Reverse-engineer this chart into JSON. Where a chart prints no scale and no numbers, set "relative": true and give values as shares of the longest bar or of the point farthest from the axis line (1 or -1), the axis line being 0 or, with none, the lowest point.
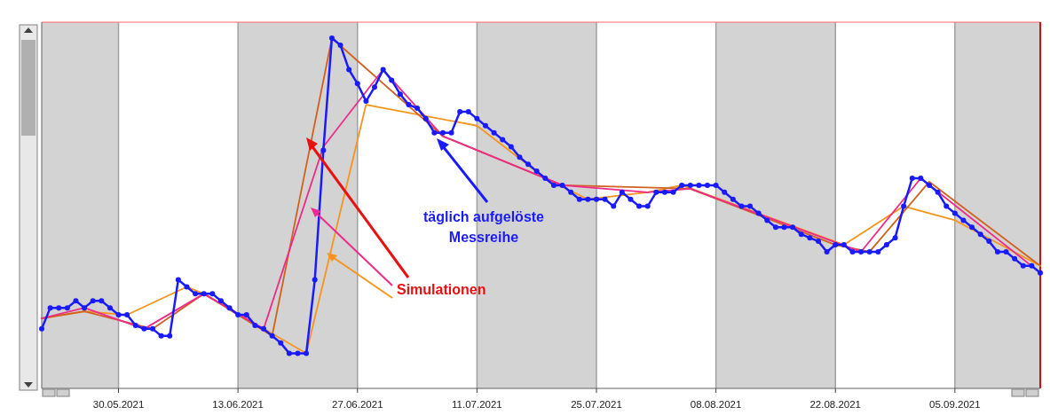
{
  "chart_data": {
    "type": "line",
    "relative": true,
    "marker": "circle",
    "grid": "x",
    "xlim": [
      "2021-05-21",
      "2021-09-15"
    ],
    "xticks": [
      {
        "value": "2021-05-30",
        "label": "30.05.2021"
      },
      {
        "value": "2021-06-13",
        "label": "13.06.2021"
      },
      {
        "value": "2021-06-27",
        "label": "27.06.2021"
      },
      {
        "value": "2021-07-11",
        "label": "11.07.2021"
      },
      {
        "value": "2021-07-25",
        "label": "25.07.2021"
      },
      {
        "value": "2021-08-08",
        "label": "08.08.2021"
      },
      {
        "value": "2021-08-22",
        "label": "22.08.2021"
      },
      {
        "value": "2021-09-05",
        "label": "05.09.2021"
      }
    ],
    "bands": [
      {
        "axis": "x",
        "from": "2021-05-21",
        "to": "2021-05-30",
        "color": "#d3d3d3"
      },
      {
        "axis": "x",
        "from": "2021-06-13",
        "to": "2021-06-27",
        "color": "#d3d3d3"
      },
      {
        "axis": "x",
        "from": "2021-07-11",
        "to": "2021-07-25",
        "color": "#d3d3d3"
      },
      {
        "axis": "x",
        "from": "2021-08-08",
        "to": "2021-08-22",
        "color": "#d3d3d3"
      },
      {
        "axis": "x",
        "from": "2021-09-05",
        "to": "2021-09-15",
        "color": "#d3d3d3"
      }
    ],
    "annotations": [
      "täglich aufgelöste Messreihe",
      "Simulationen"
    ],
    "series": [
      {
        "color": "#f7941d",
        "marker": "none",
        "x": [
          "2021-05-21",
          "2021-05-26",
          "2021-05-31",
          "2021-06-07",
          "2021-06-09",
          "2021-06-21",
          "2021-06-28",
          "2021-07-11",
          "2021-07-19",
          "2021-07-24",
          "2021-07-31",
          "2021-08-04",
          "2021-08-23",
          "2021-08-30",
          "2021-09-05",
          "2021-09-15"
        ],
        "values": [
          0.2,
          0.22,
          0.21,
          0.29,
          0.27,
          0.1,
          0.81,
          0.75,
          0.6,
          0.54,
          0.56,
          0.58,
          0.41,
          0.52,
          0.48,
          0.35
        ]
      },
      {
        "color": "#d0621f",
        "marker": "none",
        "x": [
          "2021-05-21",
          "2021-05-26",
          "2021-06-03",
          "2021-06-09",
          "2021-06-17",
          "2021-06-24",
          "2021-07-07",
          "2021-07-21",
          "2021-08-05",
          "2021-08-22",
          "2021-08-26",
          "2021-09-02",
          "2021-09-15"
        ],
        "values": [
          0.2,
          0.22,
          0.17,
          0.27,
          0.15,
          1,
          0.72,
          0.58,
          0.57,
          0.41,
          0.39,
          0.59,
          0.35
        ]
      },
      {
        "color": "#ee2a8a",
        "marker": "none",
        "x": [
          "2021-05-21",
          "2021-05-26",
          "2021-06-02",
          "2021-06-09",
          "2021-06-16",
          "2021-06-23",
          "2021-06-30",
          "2021-07-07",
          "2021-07-21",
          "2021-07-31",
          "2021-08-05",
          "2021-08-25",
          "2021-09-01",
          "2021-09-15"
        ],
        "values": [
          0.2,
          0.23,
          0.17,
          0.27,
          0.17,
          0.69,
          0.91,
          0.72,
          0.58,
          0.56,
          0.57,
          0.39,
          0.6,
          0.33
        ]
      },
      {
        "color": "#1a1aff",
        "x": [
          "2021-05-21",
          "2021-05-22",
          "2021-05-23",
          "2021-05-24",
          "2021-05-25",
          "2021-05-26",
          "2021-05-27",
          "2021-05-28",
          "2021-05-29",
          "2021-05-30",
          "2021-05-31",
          "2021-06-01",
          "2021-06-02",
          "2021-06-03",
          "2021-06-04",
          "2021-06-05",
          "2021-06-06",
          "2021-06-07",
          "2021-06-08",
          "2021-06-09",
          "2021-06-10",
          "2021-06-11",
          "2021-06-12",
          "2021-06-13",
          "2021-06-14",
          "2021-06-15",
          "2021-06-16",
          "2021-06-17",
          "2021-06-18",
          "2021-06-19",
          "2021-06-20",
          "2021-06-21",
          "2021-06-22",
          "2021-06-23",
          "2021-06-24",
          "2021-06-25",
          "2021-06-26",
          "2021-06-27",
          "2021-06-28",
          "2021-06-29",
          "2021-06-30",
          "2021-07-01",
          "2021-07-02",
          "2021-07-03",
          "2021-07-04",
          "2021-07-05",
          "2021-07-06",
          "2021-07-07",
          "2021-07-08",
          "2021-07-09",
          "2021-07-10",
          "2021-07-11",
          "2021-07-12",
          "2021-07-13",
          "2021-07-14",
          "2021-07-15",
          "2021-07-16",
          "2021-07-17",
          "2021-07-18",
          "2021-07-19",
          "2021-07-20",
          "2021-07-21",
          "2021-07-22",
          "2021-07-23",
          "2021-07-24",
          "2021-07-25",
          "2021-07-26",
          "2021-07-27",
          "2021-07-28",
          "2021-07-29",
          "2021-07-30",
          "2021-07-31",
          "2021-08-01",
          "2021-08-02",
          "2021-08-03",
          "2021-08-04",
          "2021-08-05",
          "2021-08-06",
          "2021-08-07",
          "2021-08-08",
          "2021-08-09",
          "2021-08-10",
          "2021-08-11",
          "2021-08-12",
          "2021-08-13",
          "2021-08-14",
          "2021-08-15",
          "2021-08-16",
          "2021-08-17",
          "2021-08-18",
          "2021-08-19",
          "2021-08-20",
          "2021-08-21",
          "2021-08-22",
          "2021-08-23",
          "2021-08-24",
          "2021-08-25",
          "2021-08-26",
          "2021-08-27",
          "2021-08-28",
          "2021-08-29",
          "2021-08-30",
          "2021-08-31",
          "2021-09-01",
          "2021-09-02",
          "2021-09-03",
          "2021-09-04",
          "2021-09-05",
          "2021-09-06",
          "2021-09-07",
          "2021-09-08",
          "2021-09-09",
          "2021-09-10",
          "2021-09-11",
          "2021-09-12",
          "2021-09-13",
          "2021-09-14",
          "2021-09-15"
        ],
        "values": [
          0.17,
          0.23,
          0.23,
          0.23,
          0.25,
          0.23,
          0.25,
          0.25,
          0.23,
          0.21,
          0.21,
          0.18,
          0.17,
          0.17,
          0.15,
          0.15,
          0.31,
          0.29,
          0.27,
          0.27,
          0.27,
          0.25,
          0.23,
          0.21,
          0.21,
          0.18,
          0.17,
          0.15,
          0.13,
          0.1,
          0.1,
          0.1,
          0.31,
          0.68,
          1,
          0.98,
          0.91,
          0.87,
          0.82,
          0.86,
          0.91,
          0.88,
          0.84,
          0.81,
          0.8,
          0.77,
          0.73,
          0.73,
          0.73,
          0.79,
          0.79,
          0.77,
          0.75,
          0.73,
          0.71,
          0.69,
          0.66,
          0.64,
          0.62,
          0.6,
          0.58,
          0.58,
          0.56,
          0.54,
          0.54,
          0.54,
          0.54,
          0.52,
          0.56,
          0.54,
          0.52,
          0.52,
          0.56,
          0.56,
          0.56,
          0.58,
          0.58,
          0.58,
          0.58,
          0.58,
          0.56,
          0.54,
          0.52,
          0.52,
          0.5,
          0.48,
          0.46,
          0.46,
          0.46,
          0.44,
          0.43,
          0.42,
          0.39,
          0.41,
          0.41,
          0.39,
          0.39,
          0.39,
          0.39,
          0.41,
          0.43,
          0.52,
          0.6,
          0.6,
          0.58,
          0.56,
          0.52,
          0.5,
          0.48,
          0.46,
          0.44,
          0.42,
          0.39,
          0.39,
          0.37,
          0.35,
          0.35,
          0.33
        ]
      }
    ]
  }
}
